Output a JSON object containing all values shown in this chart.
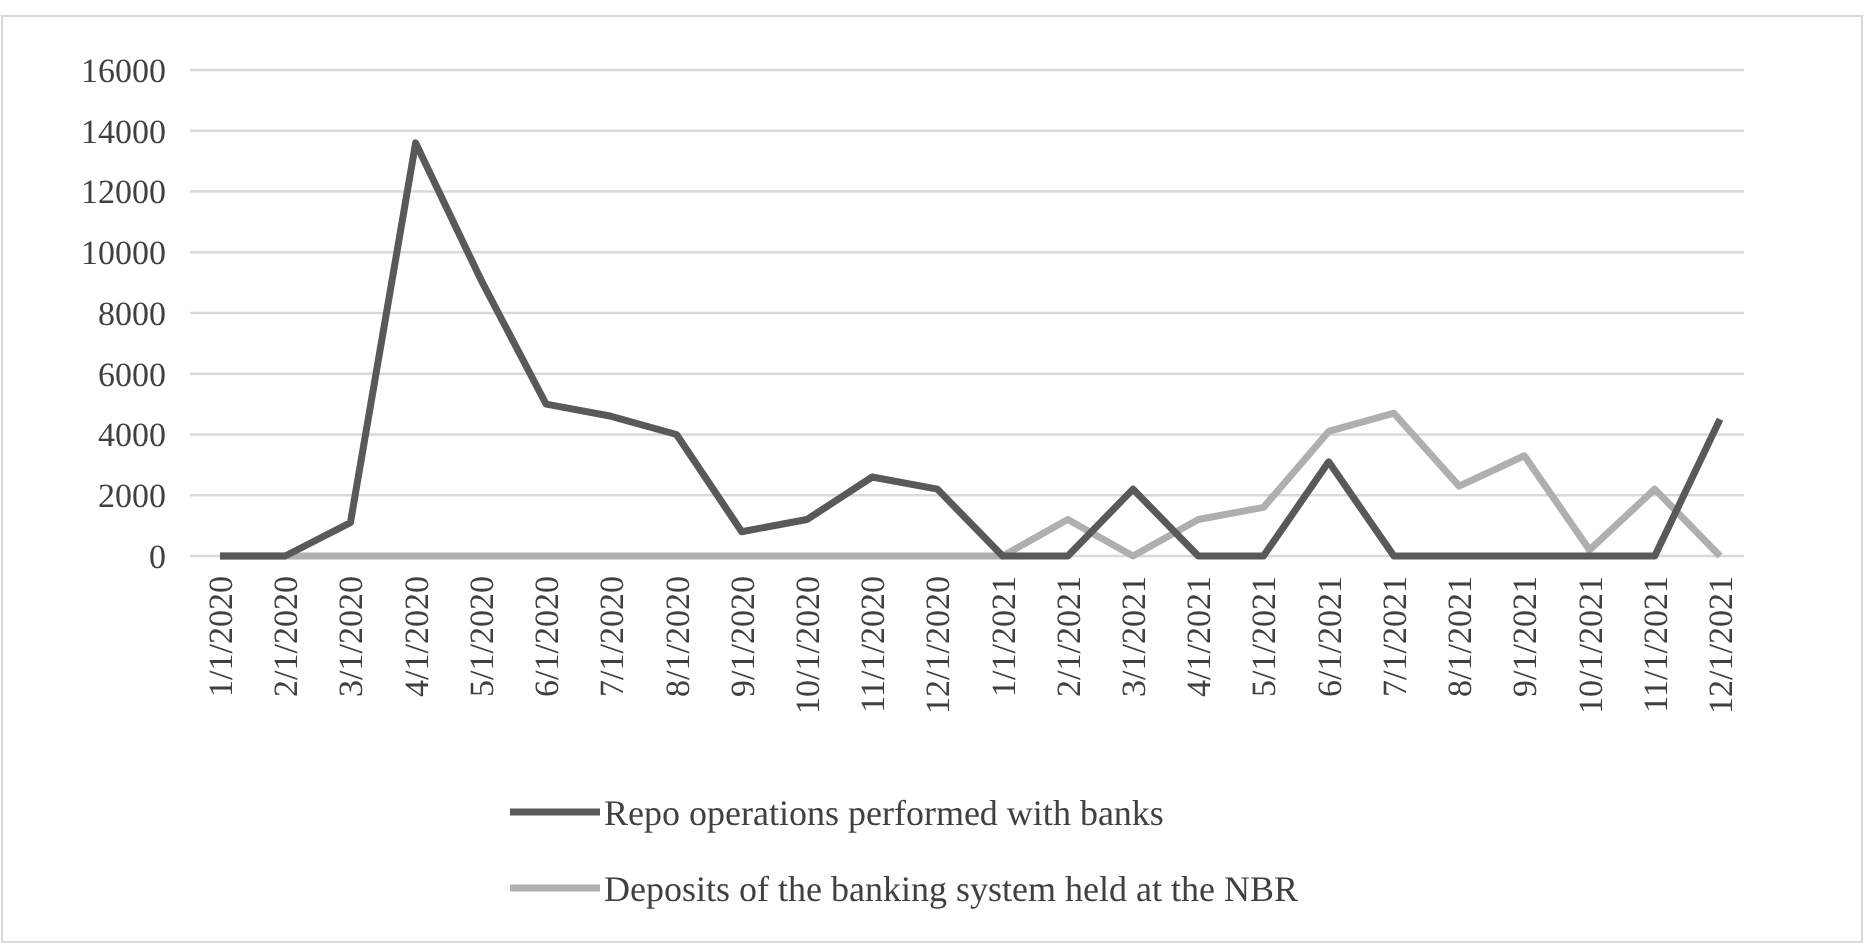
{
  "chart_data": {
    "type": "line",
    "categories": [
      "1/1/2020",
      "2/1/2020",
      "3/1/2020",
      "4/1/2020",
      "5/1/2020",
      "6/1/2020",
      "7/1/2020",
      "8/1/2020",
      "9/1/2020",
      "10/1/2020",
      "11/1/2020",
      "12/1/2020",
      "1/1/2021",
      "2/1/2021",
      "3/1/2021",
      "4/1/2021",
      "5/1/2021",
      "6/1/2021",
      "7/1/2021",
      "8/1/2021",
      "9/1/2021",
      "10/1/2021",
      "11/1/2021",
      "12/1/2021"
    ],
    "series": [
      {
        "name": "Repo operations performed with banks",
        "color": "#595959",
        "values": [
          0,
          0,
          1100,
          13600,
          9100,
          5000,
          4600,
          4000,
          800,
          1200,
          2600,
          2200,
          0,
          0,
          2200,
          0,
          0,
          3100,
          0,
          0,
          0,
          0,
          0,
          4500
        ]
      },
      {
        "name": "Deposits of the banking system held at the NBR",
        "color": "#afafaf",
        "values": [
          0,
          0,
          0,
          0,
          0,
          0,
          0,
          0,
          0,
          0,
          0,
          0,
          0,
          1200,
          0,
          1200,
          1600,
          4100,
          4700,
          2300,
          3300,
          200,
          2200,
          0
        ]
      }
    ],
    "ylim": [
      0,
      16000
    ],
    "yticks": [
      0,
      2000,
      4000,
      6000,
      8000,
      10000,
      12000,
      14000,
      16000
    ],
    "grid": "y",
    "legend": "bottom",
    "marker": "none",
    "line_style": "solid"
  }
}
